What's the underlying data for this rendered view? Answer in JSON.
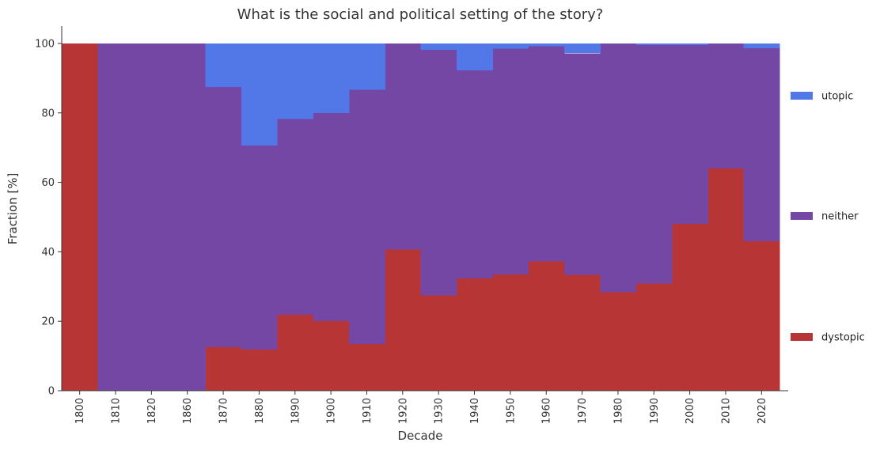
{
  "chart_data": {
    "type": "area",
    "stacked": true,
    "normalized": true,
    "title": "What is the social and political setting of the story?",
    "xlabel": "Decade",
    "ylabel": "Fraction [%]",
    "ylim": [
      0,
      105
    ],
    "yticks": [
      0,
      20,
      40,
      60,
      80,
      100
    ],
    "grid": false,
    "legend_position": "right",
    "categories": [
      "1800",
      "1810",
      "1820",
      "1860",
      "1870",
      "1880",
      "1890",
      "1900",
      "1910",
      "1920",
      "1930",
      "1940",
      "1950",
      "1960",
      "1970",
      "1980",
      "1990",
      "2000",
      "2010",
      "2020"
    ],
    "series": [
      {
        "name": "dystopic",
        "color": "#b83535",
        "values": [
          100,
          0,
          0,
          0,
          12.5,
          11.8,
          21.9,
          20.0,
          13.4,
          40.7,
          27.5,
          32.3,
          33.5,
          37.2,
          33.4,
          28.4,
          30.9,
          48.1,
          64.0,
          43.1
        ]
      },
      {
        "name": "neither",
        "color": "#7347a3",
        "values": [
          0,
          100,
          100,
          100,
          75.0,
          58.8,
          56.3,
          60.0,
          73.3,
          59.3,
          70.7,
          60.0,
          65.0,
          62.0,
          63.8,
          71.6,
          68.6,
          51.4,
          36.0,
          55.5
        ]
      },
      {
        "name": "utopic",
        "color": "#5178e6",
        "values": [
          0,
          0,
          0,
          0,
          12.5,
          29.4,
          21.8,
          20.0,
          13.3,
          0,
          1.8,
          7.7,
          1.5,
          0.8,
          2.8,
          0,
          0.5,
          0.5,
          0,
          1.4
        ]
      }
    ],
    "legend": [
      {
        "name": "utopic",
        "color": "#5178e6"
      },
      {
        "name": "neither",
        "color": "#7347a3"
      },
      {
        "name": "dystopic",
        "color": "#b83535"
      }
    ]
  }
}
